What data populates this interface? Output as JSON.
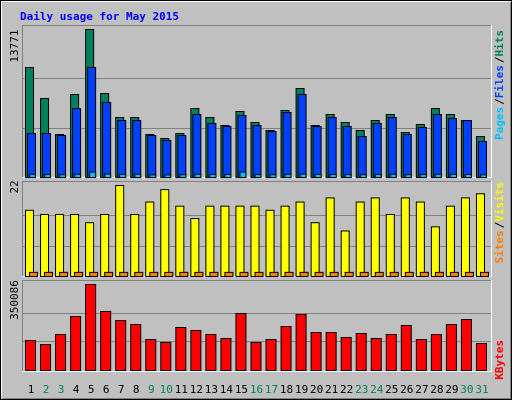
{
  "chart_data": [
    {
      "type": "bar",
      "title": "Daily usage for May 2015",
      "legend_separator": "/",
      "ylim": [
        0,
        13771
      ],
      "yticks": [
        13771
      ],
      "grid": true,
      "series": [
        {
          "name": "Pages",
          "color": "#00c0ff",
          "values": [
            300,
            280,
            260,
            300,
            500,
            320,
            290,
            300,
            250,
            240,
            260,
            300,
            290,
            280,
            500,
            270,
            260,
            300,
            320,
            290,
            280,
            270,
            260,
            280,
            300,
            260,
            280,
            300,
            290,
            280,
            250
          ]
        },
        {
          "name": "Files",
          "color": "#0040ff",
          "values": [
            4094,
            4094,
            3908,
            6420,
            10236,
            6979,
            5304,
            5304,
            3908,
            3443,
            3908,
            5862,
            5025,
            4746,
            5769,
            4839,
            4280,
            6048,
            7723,
            4746,
            5583,
            4746,
            3815,
            5025,
            5583,
            4001,
            4653,
            5862,
            5490,
            5304,
            3350
          ]
        },
        {
          "name": "Hits",
          "color": "#00805c",
          "values": [
            10236,
            7351,
            4001,
            7723,
            13771,
            7816,
            5583,
            5583,
            4001,
            3629,
            4094,
            6420,
            5583,
            4839,
            6141,
            5118,
            4373,
            6234,
            8281,
            4839,
            5862,
            5118,
            4373,
            5304,
            5862,
            4187,
            4932,
            6420,
            5862,
            5304,
            3815
          ]
        }
      ]
    },
    {
      "type": "bar",
      "legend_separator": "/",
      "ylim": [
        0,
        22
      ],
      "yticks": [
        22
      ],
      "grid": true,
      "series": [
        {
          "name": "Sites",
          "color": "#ff8000",
          "values": [
            1,
            1,
            1,
            1,
            1,
            1,
            1,
            1,
            1,
            1,
            1,
            1,
            1,
            1,
            1,
            1,
            1,
            1,
            1,
            1,
            1,
            1,
            1,
            1,
            1,
            1,
            1,
            1,
            1,
            1,
            1
          ]
        },
        {
          "name": "Visits",
          "color": "#ffff00",
          "values": [
            16,
            15,
            15,
            15,
            13,
            15,
            22,
            15,
            18,
            21,
            17,
            14,
            17,
            17,
            17,
            17,
            16,
            17,
            18,
            13,
            19,
            11,
            18,
            19,
            15,
            19,
            18,
            12,
            17,
            19,
            20
          ]
        }
      ]
    },
    {
      "type": "bar",
      "ylim": [
        0,
        350086
      ],
      "yticks": [
        350086
      ],
      "grid": true,
      "series": [
        {
          "name": "KBytes",
          "color": "#ff0000",
          "values": [
            122000,
            105800,
            146500,
            219800,
            350086,
            240200,
            203500,
            187300,
            126200,
            114000,
            175000,
            162800,
            146500,
            130300,
            232000,
            114000,
            126200,
            179100,
            228000,
            154700,
            154700,
            134300,
            150600,
            130300,
            146500,
            183200,
            126200,
            146500,
            187300,
            207600,
            109900
          ]
        }
      ],
      "categories": [
        "1",
        "2",
        "3",
        "4",
        "5",
        "6",
        "7",
        "8",
        "9",
        "10",
        "11",
        "12",
        "13",
        "14",
        "15",
        "16",
        "17",
        "18",
        "19",
        "20",
        "21",
        "22",
        "23",
        "24",
        "25",
        "26",
        "27",
        "28",
        "29",
        "30",
        "31"
      ],
      "category_colors": [
        "#000000",
        "#00805c",
        "#00805c",
        "#000000",
        "#000000",
        "#000000",
        "#000000",
        "#000000",
        "#00805c",
        "#00805c",
        "#000000",
        "#000000",
        "#000000",
        "#000000",
        "#000000",
        "#00805c",
        "#00805c",
        "#000000",
        "#000000",
        "#000000",
        "#000000",
        "#000000",
        "#00805c",
        "#00805c",
        "#000000",
        "#000000",
        "#000000",
        "#000000",
        "#000000",
        "#00805c",
        "#00805c"
      ]
    }
  ]
}
